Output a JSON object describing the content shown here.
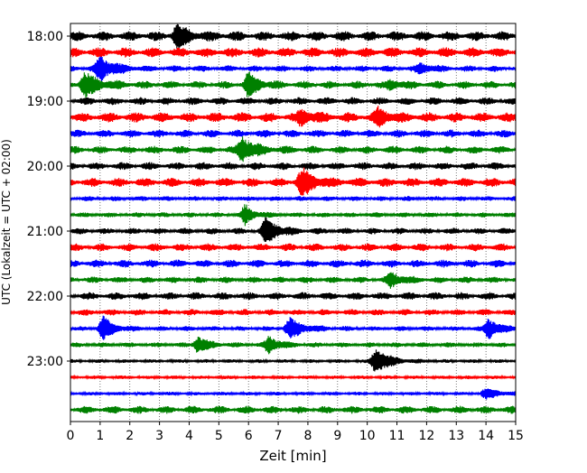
{
  "chart_data": {
    "type": "line",
    "title": "",
    "xlabel": "Zeit  [min]",
    "ylabel": "UTC (Lokalzeit = UTC + 02:00)",
    "xlim": [
      0,
      15
    ],
    "x_ticks": [
      "0",
      "1",
      "2",
      "3",
      "4",
      "5",
      "6",
      "7",
      "8",
      "9",
      "10",
      "11",
      "12",
      "13",
      "14",
      "15"
    ],
    "y_ticks": [
      "18:00",
      "19:00",
      "20:00",
      "21:00",
      "22:00",
      "23:00"
    ],
    "grid": "vertical dotted",
    "trace_interval_min": 15,
    "colors": [
      "#000000",
      "#ff0000",
      "#0000ff",
      "#008000"
    ],
    "traces": [
      {
        "start": "18:00",
        "noise": 0.22
      },
      {
        "start": "18:15",
        "noise": 0.22
      },
      {
        "start": "18:30",
        "noise": 0.14
      },
      {
        "start": "18:45",
        "noise": 0.17
      },
      {
        "start": "19:00",
        "noise": 0.17
      },
      {
        "start": "19:15",
        "noise": 0.22
      },
      {
        "start": "19:30",
        "noise": 0.17
      },
      {
        "start": "19:45",
        "noise": 0.17
      },
      {
        "start": "20:00",
        "noise": 0.17
      },
      {
        "start": "20:15",
        "noise": 0.2
      },
      {
        "start": "20:30",
        "noise": 0.11
      },
      {
        "start": "20:45",
        "noise": 0.11
      },
      {
        "start": "21:00",
        "noise": 0.14
      },
      {
        "start": "21:15",
        "noise": 0.17
      },
      {
        "start": "21:30",
        "noise": 0.17
      },
      {
        "start": "21:45",
        "noise": 0.14
      },
      {
        "start": "22:00",
        "noise": 0.17
      },
      {
        "start": "22:15",
        "noise": 0.14
      },
      {
        "start": "22:30",
        "noise": 0.11
      },
      {
        "start": "22:45",
        "noise": 0.11
      },
      {
        "start": "23:00",
        "noise": 0.08
      },
      {
        "start": "23:15",
        "noise": 0.08
      },
      {
        "start": "23:30",
        "noise": 0.08
      },
      {
        "start": "23:45",
        "noise": 0.17
      }
    ],
    "events": [
      {
        "trace": 0,
        "minute": 3.6,
        "amplitude": 0.7,
        "duration": 1.0
      },
      {
        "trace": 2,
        "minute": 1.0,
        "amplitude": 0.75,
        "duration": 1.3
      },
      {
        "trace": 2,
        "minute": 11.8,
        "amplitude": 0.3,
        "duration": 1.0
      },
      {
        "trace": 3,
        "minute": 0.5,
        "amplitude": 0.7,
        "duration": 1.3
      },
      {
        "trace": 3,
        "minute": 6.0,
        "amplitude": 0.75,
        "duration": 0.9
      },
      {
        "trace": 3,
        "minute": 10.8,
        "amplitude": 0.25,
        "duration": 1.0
      },
      {
        "trace": 5,
        "minute": 7.8,
        "amplitude": 0.45,
        "duration": 1.0
      },
      {
        "trace": 5,
        "minute": 10.4,
        "amplitude": 0.5,
        "duration": 1.0
      },
      {
        "trace": 7,
        "minute": 5.8,
        "amplitude": 0.75,
        "duration": 1.2
      },
      {
        "trace": 9,
        "minute": 7.8,
        "amplitude": 0.75,
        "duration": 1.3
      },
      {
        "trace": 11,
        "minute": 5.9,
        "amplitude": 0.6,
        "duration": 0.8
      },
      {
        "trace": 12,
        "minute": 6.6,
        "amplitude": 0.8,
        "duration": 1.1
      },
      {
        "trace": 15,
        "minute": 10.8,
        "amplitude": 0.45,
        "duration": 1.0
      },
      {
        "trace": 18,
        "minute": 1.1,
        "amplitude": 0.7,
        "duration": 1.0
      },
      {
        "trace": 18,
        "minute": 7.4,
        "amplitude": 0.6,
        "duration": 1.3
      },
      {
        "trace": 18,
        "minute": 14.1,
        "amplitude": 0.65,
        "duration": 0.9
      },
      {
        "trace": 19,
        "minute": 4.3,
        "amplitude": 0.5,
        "duration": 1.0
      },
      {
        "trace": 19,
        "minute": 6.7,
        "amplitude": 0.5,
        "duration": 1.0
      },
      {
        "trace": 20,
        "minute": 10.3,
        "amplitude": 0.8,
        "duration": 1.3
      },
      {
        "trace": 22,
        "minute": 14.0,
        "amplitude": 0.3,
        "duration": 1.4
      }
    ]
  }
}
